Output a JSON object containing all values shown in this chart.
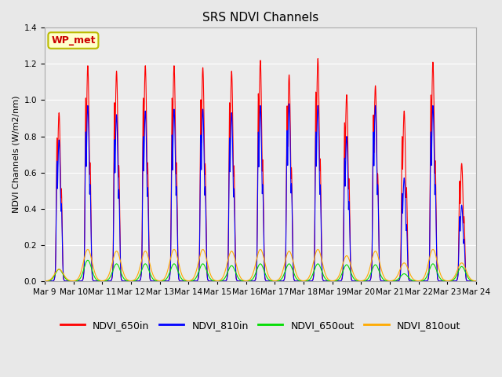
{
  "title": "SRS NDVI Channels",
  "ylabel": "NDVI Channels (W/m2/nm)",
  "annotation": "WP_met",
  "ylim": [
    0,
    1.4
  ],
  "bg_color": "#e8e8e8",
  "plot_bg_color": "#ebebeb",
  "series_colors": {
    "NDVI_650in": "#ff0000",
    "NDVI_810in": "#0000ff",
    "NDVI_650out": "#00dd00",
    "NDVI_810out": "#ffaa00"
  },
  "xtick_labels": [
    "Mar 9",
    "Mar 10",
    "Mar 11",
    "Mar 12",
    "Mar 13",
    "Mar 14",
    "Mar 15",
    "Mar 16",
    "Mar 17",
    "Mar 18",
    "Mar 19",
    "Mar 20",
    "Mar 21",
    "Mar 22",
    "Mar 23",
    "Mar 24"
  ],
  "grid_color": "#ffffff",
  "day_peaks_650in": [
    0.93,
    1.19,
    1.16,
    1.19,
    1.19,
    1.18,
    1.16,
    1.22,
    1.14,
    1.23,
    1.03,
    1.08,
    0.94,
    1.21,
    0.65
  ],
  "day_peaks_810in": [
    0.78,
    0.97,
    0.92,
    0.94,
    0.95,
    0.95,
    0.93,
    0.97,
    0.98,
    0.97,
    0.8,
    0.97,
    0.57,
    0.97,
    0.42
  ],
  "day_peaks_650out": [
    0.065,
    0.115,
    0.095,
    0.095,
    0.095,
    0.095,
    0.085,
    0.095,
    0.095,
    0.095,
    0.09,
    0.09,
    0.04,
    0.095,
    0.08
  ],
  "day_peaks_810out": [
    0.065,
    0.175,
    0.165,
    0.165,
    0.175,
    0.175,
    0.165,
    0.175,
    0.165,
    0.175,
    0.14,
    0.165,
    0.1,
    0.175,
    0.1
  ],
  "n_days": 15,
  "pts_per_day": 500,
  "lw": 0.8,
  "title_fontsize": 11,
  "legend_fontsize": 9,
  "tick_fontsize": 7.5
}
